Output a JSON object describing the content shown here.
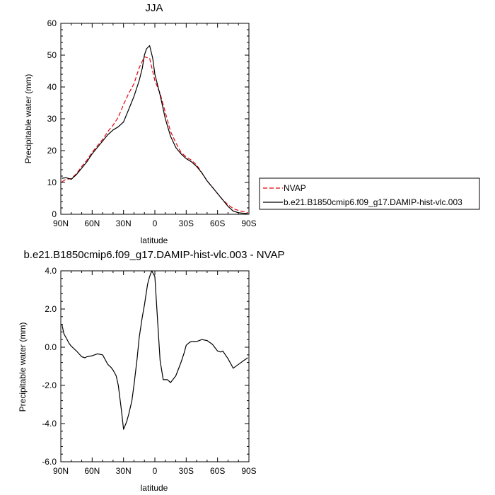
{
  "chart_data": [
    {
      "type": "line",
      "title": "JJA",
      "xlabel": "latitude",
      "ylabel": "Precipitable water (mm)",
      "xlim": [
        90,
        -90
      ],
      "ylim": [
        0,
        60
      ],
      "x_ticks": [
        90,
        60,
        30,
        0,
        -30,
        -60,
        -90
      ],
      "x_tick_labels": [
        "90N",
        "60N",
        "30N",
        "0",
        "30S",
        "60S",
        "90S"
      ],
      "y_ticks": [
        0,
        10,
        20,
        30,
        40,
        50,
        60
      ],
      "y_tick_labels": [
        "0",
        "10",
        "20",
        "30",
        "40",
        "50",
        "60"
      ],
      "legend_position": "right",
      "series": [
        {
          "name": "NVAP",
          "color": "#e8000b",
          "dash": "dashed",
          "x": [
            89,
            85,
            80,
            75,
            70,
            65,
            60,
            55,
            50,
            45,
            40,
            35,
            30,
            25,
            20,
            15,
            10,
            5,
            0,
            -5,
            -10,
            -15,
            -20,
            -25,
            -30,
            -35,
            -40,
            -45,
            -50,
            -55,
            -60,
            -65,
            -70,
            -75,
            -80,
            -85,
            -89
          ],
          "y": [
            10.2,
            11.0,
            11.2,
            12.8,
            15.0,
            17.0,
            19.5,
            21.5,
            23.5,
            26.0,
            28.0,
            30.5,
            34.5,
            38.0,
            41.0,
            46.0,
            49.5,
            49.0,
            42.0,
            38.0,
            32.0,
            26.0,
            22.5,
            19.5,
            18.0,
            17.0,
            15.5,
            13.0,
            10.5,
            8.5,
            6.5,
            4.5,
            3.0,
            1.8,
            1.2,
            0.8,
            0.5
          ]
        },
        {
          "name": "b.e21.B1850cmip6.f09_g17.DAMIP-hist-vlc.003",
          "color": "#000000",
          "dash": "solid",
          "x": [
            89,
            85,
            80,
            75,
            70,
            65,
            60,
            55,
            50,
            45,
            40,
            35,
            30,
            25,
            20,
            15,
            12,
            10,
            8,
            5,
            2,
            0,
            -5,
            -10,
            -15,
            -20,
            -25,
            -30,
            -35,
            -40,
            -45,
            -50,
            -55,
            -60,
            -65,
            -70,
            -75,
            -80,
            -85,
            -89
          ],
          "y": [
            11.3,
            11.5,
            11.0,
            12.5,
            14.5,
            16.5,
            19.0,
            21.0,
            23.0,
            25.0,
            26.5,
            27.5,
            29.0,
            33.0,
            37.0,
            42.0,
            46.0,
            50.0,
            52.0,
            53.0,
            49.0,
            44.0,
            37.5,
            30.0,
            24.5,
            21.0,
            19.0,
            17.5,
            16.5,
            15.0,
            13.0,
            10.5,
            8.5,
            6.5,
            4.5,
            2.5,
            1.0,
            0.5,
            0.3,
            0.2
          ]
        }
      ]
    },
    {
      "type": "line",
      "title": "b.e21.B1850cmip6.f09_g17.DAMIP-hist-vlc.003 - NVAP",
      "xlabel": "latitude",
      "ylabel": "Precipitable water (mm)",
      "xlim": [
        90,
        -90
      ],
      "ylim": [
        -6,
        4
      ],
      "x_ticks": [
        90,
        60,
        30,
        0,
        -30,
        -60,
        -90
      ],
      "x_tick_labels": [
        "90N",
        "60N",
        "30N",
        "0",
        "30S",
        "60S",
        "90S"
      ],
      "y_ticks": [
        -6,
        -4,
        -2,
        0,
        2,
        4
      ],
      "y_tick_labels": [
        "-6.0",
        "-4.0",
        "-2.0",
        "0.0",
        "2.0",
        "4.0"
      ],
      "series": [
        {
          "color": "#000000",
          "x": [
            89,
            87,
            85,
            82,
            80,
            75,
            70,
            67,
            65,
            60,
            55,
            50,
            47,
            45,
            42,
            40,
            37,
            35,
            32,
            30,
            27,
            25,
            22,
            20,
            17,
            15,
            12,
            10,
            7,
            5,
            3,
            0,
            -2,
            -5,
            -8,
            -10,
            -12,
            -15,
            -20,
            -25,
            -28,
            -30,
            -33,
            -35,
            -40,
            -45,
            -50,
            -55,
            -60,
            -63,
            -65,
            -70,
            -75,
            -80,
            -85,
            -89
          ],
          "y": [
            1.2,
            0.7,
            0.5,
            0.2,
            0.05,
            -0.2,
            -0.5,
            -0.55,
            -0.5,
            -0.45,
            -0.35,
            -0.4,
            -0.7,
            -0.9,
            -1.05,
            -1.2,
            -1.5,
            -2.0,
            -3.3,
            -4.3,
            -3.9,
            -3.5,
            -2.8,
            -2.0,
            -0.6,
            0.5,
            1.6,
            2.2,
            3.3,
            3.7,
            4.0,
            3.7,
            1.9,
            -0.7,
            -1.7,
            -1.7,
            -1.7,
            -1.85,
            -1.5,
            -0.8,
            -0.3,
            0.1,
            0.25,
            0.3,
            0.3,
            0.4,
            0.35,
            0.15,
            -0.2,
            -0.25,
            -0.2,
            -0.6,
            -1.1,
            -0.9,
            -0.7,
            -0.55
          ]
        }
      ]
    }
  ]
}
